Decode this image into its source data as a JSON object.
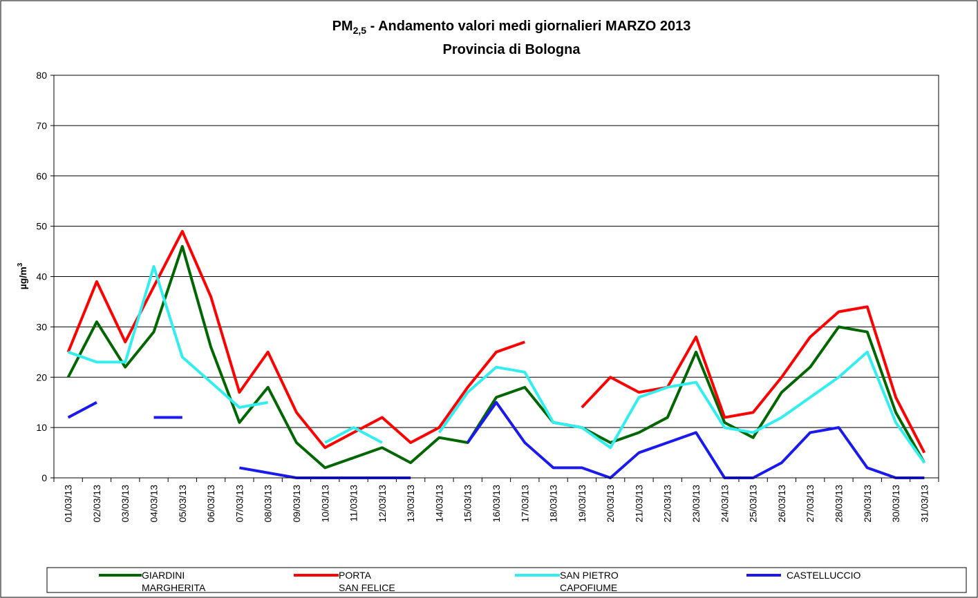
{
  "chart_data": {
    "type": "line",
    "title": {
      "main": "PM",
      "sub": "2,5",
      "rest": " - Andamento valori medi giornalieri MARZO 2013"
    },
    "subtitle": "Provincia di Bologna",
    "ylabel": {
      "main": "µg/m",
      "sup": "3"
    },
    "categories": [
      "01/03/13",
      "02/03/13",
      "03/03/13",
      "04/03/13",
      "05/03/13",
      "06/03/13",
      "07/03/13",
      "08/03/13",
      "09/03/13",
      "10/03/13",
      "11/03/13",
      "12/03/13",
      "13/03/13",
      "14/03/13",
      "15/03/13",
      "16/03/13",
      "17/03/13",
      "18/03/13",
      "19/03/13",
      "20/03/13",
      "21/03/13",
      "22/03/13",
      "23/03/13",
      "24/03/13",
      "25/03/13",
      "26/03/13",
      "27/03/13",
      "28/03/13",
      "29/03/13",
      "30/03/13",
      "31/03/13"
    ],
    "series": [
      {
        "name": "GIARDINI\nMARGHERITA",
        "color": "#006600",
        "values": [
          20,
          31,
          22,
          29,
          46,
          26,
          11,
          18,
          7,
          2,
          4,
          6,
          3,
          8,
          7,
          16,
          18,
          11,
          10,
          7,
          9,
          12,
          25,
          11,
          8,
          17,
          22,
          30,
          29,
          13,
          3
        ]
      },
      {
        "name": "PORTA\nSAN FELICE",
        "color": "#ff0000",
        "values": [
          25,
          39,
          27,
          38,
          49,
          36,
          17,
          25,
          13,
          6,
          9,
          12,
          7,
          10,
          18,
          25,
          27,
          null,
          14,
          20,
          17,
          18,
          28,
          12,
          13,
          20,
          28,
          33,
          34,
          16,
          5
        ]
      },
      {
        "name": "SAN PIETRO\nCAPOFIUME",
        "color": "#33eeee",
        "values": [
          25,
          23,
          23,
          42,
          24,
          19,
          14,
          15,
          null,
          7,
          10,
          7,
          null,
          9,
          17,
          22,
          21,
          11,
          10,
          6,
          16,
          18,
          19,
          10,
          9,
          12,
          16,
          20,
          25,
          11,
          3
        ]
      },
      {
        "name": "CASTELLUCCIO",
        "color": "#1a1aee",
        "values": [
          12,
          15,
          null,
          12,
          12,
          null,
          2,
          1,
          0,
          0,
          0,
          0,
          0,
          null,
          7,
          15,
          7,
          2,
          2,
          0,
          5,
          7,
          9,
          0,
          0,
          3,
          9,
          10,
          2,
          0,
          0
        ]
      }
    ],
    "ylim": [
      0,
      80
    ],
    "yticks": [
      0,
      10,
      20,
      30,
      40,
      50,
      60,
      70,
      80
    ],
    "grid": true
  }
}
